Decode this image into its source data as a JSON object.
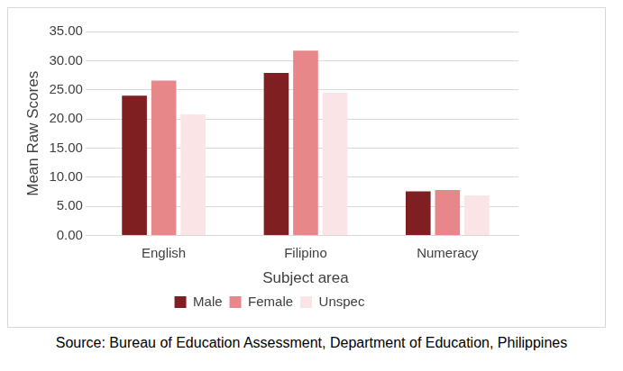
{
  "chart_data": {
    "type": "bar",
    "x_label": "Subject area",
    "y_label": "Mean Raw Scores",
    "annotations": [
      "Source: Bureau of Education Assessment, Department of Education, Philippines"
    ],
    "categories": [
      "English",
      "Filipino",
      "Numeracy"
    ],
    "series": [
      {
        "name": "Male",
        "color": "#7f1f22",
        "values": [
          24.0,
          27.9,
          7.6
        ]
      },
      {
        "name": "Female",
        "color": "#e8878a",
        "values": [
          26.6,
          31.7,
          7.8
        ]
      },
      {
        "name": "Unspec",
        "color": "#fbe4e5",
        "values": [
          20.8,
          24.5,
          6.9
        ]
      }
    ],
    "ylim": [
      0,
      35
    ],
    "yticks": [
      {
        "value": 0,
        "label": "0.00"
      },
      {
        "value": 5,
        "label": "5.00"
      },
      {
        "value": 10,
        "label": "10.00"
      },
      {
        "value": 15,
        "label": "15.00"
      },
      {
        "value": 20,
        "label": "20.00"
      },
      {
        "value": 25,
        "label": "25.00"
      },
      {
        "value": 30,
        "label": "30.00"
      },
      {
        "value": 35,
        "label": "35.00"
      }
    ],
    "grid": true,
    "legend": "bottom"
  }
}
